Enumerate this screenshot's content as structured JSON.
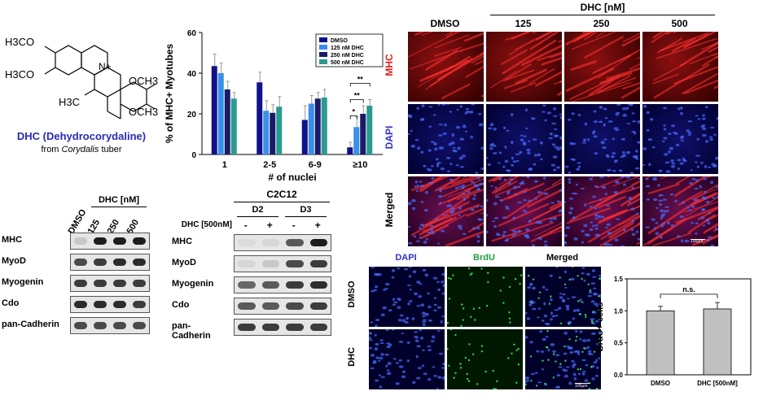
{
  "molecule": {
    "groups": [
      "H3CO",
      "H3CO",
      "H3C",
      "OCH3",
      "OCH3"
    ],
    "charge": "N+",
    "name": "DHC (Dehydrocorydaline)",
    "source_prefix": "from ",
    "source_italic": "Corydalis",
    "source_suffix": " tuber",
    "name_color": "#2a2ab8"
  },
  "chart_data": [
    {
      "type": "bar",
      "ylabel": "% of MHC+ Myotubes",
      "xlabel": "# of nuclei",
      "categories": [
        "1",
        "2-5",
        "6-9",
        "≥10"
      ],
      "ylim": [
        0,
        60
      ],
      "yticks": [
        0,
        20,
        40,
        60
      ],
      "legend_position": "top-right",
      "series": [
        {
          "name": "DMSO",
          "color": "#11118a",
          "values": [
            43.5,
            35.5,
            17,
            3.5
          ],
          "errors": [
            6,
            5,
            7,
            2.5
          ]
        },
        {
          "name": "125 nM DHC",
          "color": "#3a8fe8",
          "values": [
            40,
            21.5,
            25,
            13.5
          ],
          "errors": [
            5,
            5,
            4,
            5
          ]
        },
        {
          "name": "250 nM DHC",
          "color": "#1a1a6a",
          "values": [
            32,
            20.5,
            27.5,
            20
          ],
          "errors": [
            4,
            4,
            3,
            4
          ]
        },
        {
          "name": "500 nM DHC",
          "color": "#2a9a90",
          "values": [
            27.5,
            23.5,
            28,
            24
          ],
          "errors": [
            3,
            5,
            4,
            3
          ]
        }
      ],
      "annotations": [
        "*",
        "**",
        "**"
      ]
    },
    {
      "type": "bar",
      "ylabel": "BrdU+ cells",
      "categories": [
        "DMSO",
        "DHC [500nM]"
      ],
      "values": [
        1.0,
        1.03
      ],
      "errors": [
        0.07,
        0.1
      ],
      "ylim": [
        0,
        1.5
      ],
      "yticks": [
        "0.0",
        "0.5",
        "1.0",
        "1.5"
      ],
      "annotation": "n.s.",
      "bar_color": "#c0c0c0"
    }
  ],
  "western_left": {
    "header": "DHC [nM]",
    "lanes": [
      "DMSO",
      "125",
      "250",
      "500"
    ],
    "rows": [
      {
        "label": "MHC",
        "intensity": [
          0.25,
          0.95,
          0.95,
          0.95
        ]
      },
      {
        "label": "MyoD",
        "intensity": [
          0.8,
          0.85,
          0.9,
          0.9
        ]
      },
      {
        "label": "Myogenin",
        "intensity": [
          0.85,
          0.85,
          0.85,
          0.85
        ]
      },
      {
        "label": "Cdo",
        "intensity": [
          0.9,
          0.9,
          0.9,
          0.85
        ]
      },
      {
        "label": "pan-Cadherin",
        "intensity": [
          0.8,
          0.8,
          0.8,
          0.8
        ]
      }
    ]
  },
  "western_right": {
    "cell_line": "C2C12",
    "days": [
      "D2",
      "D3"
    ],
    "treatment_label": "DHC [500nM]",
    "signs": [
      "-",
      "+",
      "-",
      "+"
    ],
    "rows": [
      {
        "label": "MHC",
        "intensity": [
          0.1,
          0.15,
          0.75,
          0.95
        ]
      },
      {
        "label": "MyoD",
        "intensity": [
          0.15,
          0.25,
          0.8,
          0.85
        ]
      },
      {
        "label": "Myogenin",
        "intensity": [
          0.7,
          0.75,
          0.85,
          0.9
        ]
      },
      {
        "label": "Cdo",
        "intensity": [
          0.75,
          0.75,
          0.8,
          0.85
        ]
      },
      {
        "label": "pan-Cadherin",
        "intensity": [
          0.85,
          0.85,
          0.85,
          0.85
        ]
      }
    ]
  },
  "micro_top": {
    "header": "DHC [nM]",
    "columns": [
      "DMSO",
      "125",
      "250",
      "500"
    ],
    "rows": [
      {
        "label": "MHC",
        "color": "#e02020"
      },
      {
        "label": "DAPI",
        "color": "#3030d0"
      },
      {
        "label": "Merged",
        "color": "#000000"
      }
    ],
    "scale_label": "100μm"
  },
  "micro_bottom": {
    "columns": [
      {
        "label": "DAPI",
        "color": "#3030d0"
      },
      {
        "label": "BrdU",
        "color": "#20a040"
      },
      {
        "label": "Merged",
        "color": "#000000"
      }
    ],
    "rows": [
      "DMSO",
      "DHC"
    ],
    "scale_label": "100μm"
  }
}
